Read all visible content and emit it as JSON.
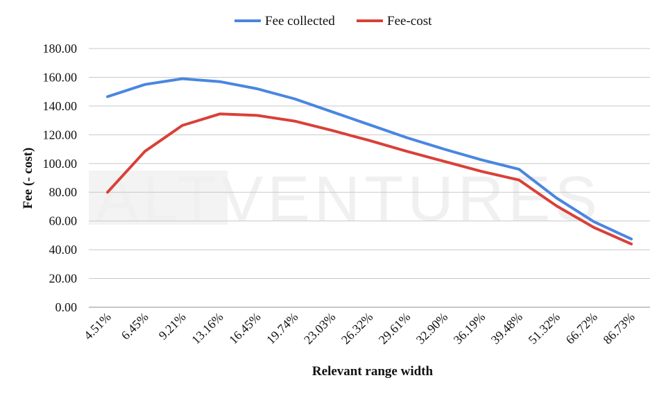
{
  "chart_data": {
    "type": "line",
    "categories": [
      "4.51%",
      "6.45%",
      "9.21%",
      "13.16%",
      "16.45%",
      "19.74%",
      "23.03%",
      "26.32%",
      "29.61%",
      "32.90%",
      "36.19%",
      "39.48%",
      "51.32%",
      "66.72%",
      "86.73%"
    ],
    "series": [
      {
        "name": "Fee collected",
        "color": "#4a86e0",
        "values": [
          146.5,
          155,
          159,
          157,
          152,
          145,
          136,
          127,
          118,
          110,
          102.5,
          96,
          76,
          59.5,
          47.5
        ]
      },
      {
        "name": "Fee-cost",
        "color": "#d94038",
        "values": [
          80,
          108.5,
          126.5,
          134.5,
          133.5,
          129.5,
          123,
          116,
          108.5,
          101.5,
          94.5,
          88.5,
          70.5,
          55.5,
          44
        ]
      }
    ],
    "xlabel": "Relevant range width",
    "ylabel": "Fee  (- cost)",
    "ylim": [
      0,
      180
    ],
    "yticks": [
      "0.00",
      "20.00",
      "40.00",
      "60.00",
      "80.00",
      "100.00",
      "120.00",
      "140.00",
      "160.00",
      "180.00"
    ],
    "grid": true,
    "legend": "top-center"
  },
  "watermark": "ALTVENTURES"
}
